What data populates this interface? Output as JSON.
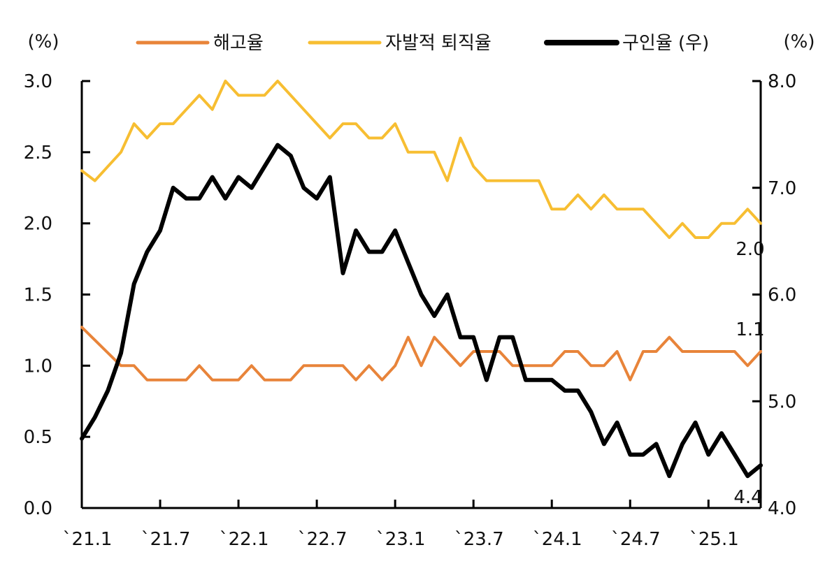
{
  "chart_data": {
    "type": "line",
    "left_unit": "(%)",
    "right_unit": "(%)",
    "x_tick_labels": [
      "`21.1",
      "`21.7",
      "`22.1",
      "`22.7",
      "`23.1",
      "`23.7",
      "`24.1",
      "`24.7",
      "`25.1"
    ],
    "x_months": [
      "2021-01",
      "2021-02",
      "2021-03",
      "2021-04",
      "2021-05",
      "2021-06",
      "2021-07",
      "2021-08",
      "2021-09",
      "2021-10",
      "2021-11",
      "2021-12",
      "2022-01",
      "2022-02",
      "2022-03",
      "2022-04",
      "2022-05",
      "2022-06",
      "2022-07",
      "2022-08",
      "2022-09",
      "2022-10",
      "2022-11",
      "2022-12",
      "2023-01",
      "2023-02",
      "2023-03",
      "2023-04",
      "2023-05",
      "2023-06",
      "2023-07",
      "2023-08",
      "2023-09",
      "2023-10",
      "2023-11",
      "2023-12",
      "2024-01",
      "2024-02",
      "2024-03",
      "2024-04",
      "2024-05",
      "2024-06",
      "2024-07",
      "2024-08",
      "2024-09",
      "2024-10",
      "2024-11",
      "2024-12",
      "2025-01",
      "2025-02",
      "2025-03",
      "2025-04",
      "2025-05"
    ],
    "left_axis": {
      "min": 0.0,
      "max": 3.0,
      "ticks": [
        "0.0",
        "0.5",
        "1.0",
        "1.5",
        "2.0",
        "2.5",
        "3.0"
      ]
    },
    "right_axis": {
      "min": 4.0,
      "max": 8.0,
      "ticks": [
        "4.0",
        "5.0",
        "6.0",
        "7.0",
        "8.0"
      ]
    },
    "legend_position": "top",
    "grid": false,
    "series": [
      {
        "name": "해고율",
        "axis": "left",
        "color": "#E8843A",
        "values": [
          1.27,
          1.18,
          1.09,
          1.0,
          1.0,
          0.9,
          0.9,
          0.9,
          0.9,
          1.0,
          0.9,
          0.9,
          0.9,
          1.0,
          0.9,
          0.9,
          0.9,
          1.0,
          1.0,
          1.0,
          1.0,
          0.9,
          1.0,
          0.9,
          1.0,
          1.2,
          1.0,
          1.2,
          1.1,
          1.0,
          1.1,
          1.1,
          1.1,
          1.0,
          1.0,
          1.0,
          1.0,
          1.1,
          1.1,
          1.0,
          1.0,
          1.1,
          0.9,
          1.1,
          1.1,
          1.2,
          1.1,
          1.1,
          1.1,
          1.1,
          1.1,
          1.0,
          1.1
        ],
        "end_label": "1.1"
      },
      {
        "name": "자발적 퇴직율",
        "axis": "left",
        "color": "#F7BE32",
        "values": [
          2.37,
          2.3,
          2.4,
          2.5,
          2.7,
          2.6,
          2.7,
          2.7,
          2.8,
          2.9,
          2.8,
          3.0,
          2.9,
          2.9,
          2.9,
          3.0,
          2.9,
          2.8,
          2.7,
          2.6,
          2.7,
          2.7,
          2.6,
          2.6,
          2.7,
          2.5,
          2.5,
          2.5,
          2.3,
          2.6,
          2.4,
          2.3,
          2.3,
          2.3,
          2.3,
          2.3,
          2.1,
          2.1,
          2.2,
          2.1,
          2.2,
          2.1,
          2.1,
          2.1,
          2.0,
          1.9,
          2.0,
          1.9,
          1.9,
          2.0,
          2.0,
          2.1,
          2.0
        ],
        "end_label": "2.0"
      },
      {
        "name": "구인율 (우)",
        "axis": "right",
        "color": "#000000",
        "values": [
          4.65,
          4.85,
          5.1,
          5.45,
          6.1,
          6.4,
          6.6,
          7.0,
          6.9,
          6.9,
          7.1,
          6.9,
          7.1,
          7.0,
          7.2,
          7.4,
          7.3,
          7.0,
          6.9,
          7.1,
          6.2,
          6.6,
          6.4,
          6.4,
          6.6,
          6.3,
          6.0,
          5.8,
          6.0,
          5.6,
          5.6,
          5.2,
          5.6,
          5.6,
          5.2,
          5.2,
          5.2,
          5.1,
          5.1,
          4.9,
          4.6,
          4.8,
          4.5,
          4.5,
          4.6,
          4.3,
          4.6,
          4.8,
          4.5,
          4.7,
          4.5,
          4.3,
          4.4
        ],
        "end_label": "4.4"
      }
    ]
  }
}
